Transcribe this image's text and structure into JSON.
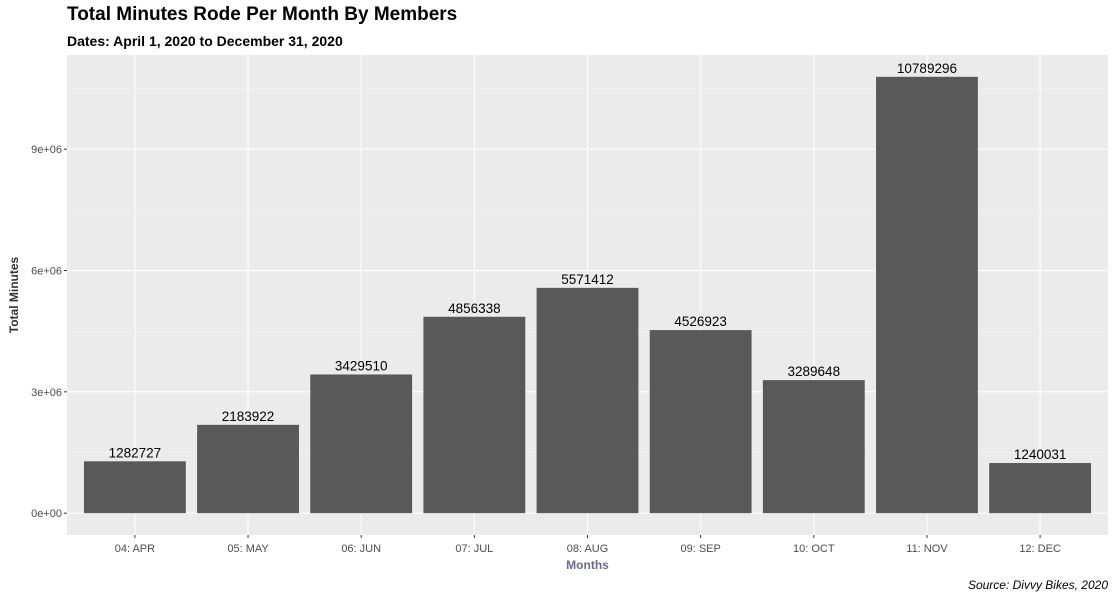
{
  "chart_data": {
    "type": "bar",
    "title": "Total Minutes Rode Per Month By Members",
    "subtitle": "Dates: April 1, 2020 to December 31, 2020",
    "caption": "Source: Divvy Bikes, 2020",
    "xlabel": "Months",
    "ylabel": "Total Minutes",
    "categories": [
      "04: APR",
      "05: MAY",
      "06: JUN",
      "07: JUL",
      "08: AUG",
      "09: SEP",
      "10: OCT",
      "11: NOV",
      "12: DEC"
    ],
    "values": [
      1282727,
      2183922,
      3429510,
      4856338,
      5571412,
      4526923,
      3289648,
      10789296,
      1240031
    ],
    "yticks": [
      0,
      3000000,
      6000000,
      9000000
    ],
    "ytick_labels": [
      "0e+00",
      "3e+06",
      "6e+06",
      "9e+06"
    ],
    "ylim": [
      -539465,
      11328761
    ],
    "grid": true,
    "colors": {
      "bar": "#595959",
      "panel_background": "#ebebeb",
      "grid_major": "#ffffff",
      "grid_minor": "#f5f5f5",
      "xlabel": "#6a6a96",
      "ylabel": "#333333"
    }
  }
}
